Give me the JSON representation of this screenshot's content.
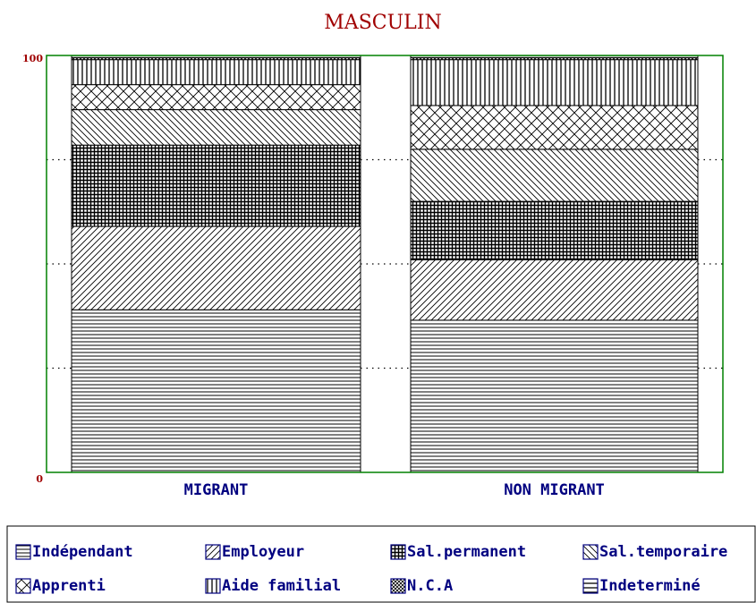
{
  "chart_data": {
    "type": "stacked_bar",
    "title": "MASCULIN",
    "categories": [
      "MIGRANT",
      "NON MIGRANT"
    ],
    "series": [
      {
        "name": "Indépendant",
        "pattern": "hline",
        "values": [
          39,
          36.5
        ]
      },
      {
        "name": "Employeur",
        "pattern": "diag",
        "values": [
          20,
          14.5
        ]
      },
      {
        "name": "Sal.permanent",
        "pattern": "grid",
        "values": [
          19.5,
          14
        ]
      },
      {
        "name": "Sal.temporaire",
        "pattern": "anti",
        "values": [
          8.5,
          12.5
        ]
      },
      {
        "name": "Apprenti",
        "pattern": "cross",
        "values": [
          6,
          10.5
        ]
      },
      {
        "name": "Aide familial",
        "pattern": "vline",
        "values": [
          6,
          11
        ]
      },
      {
        "name": "N.C.A",
        "pattern": "xdense",
        "values": [
          0.5,
          0.5
        ]
      },
      {
        "name": "Indeterminé",
        "pattern": "hline2",
        "values": [
          0.5,
          0.5
        ]
      }
    ],
    "ylim": [
      0,
      100
    ],
    "yticks": [
      0,
      100
    ],
    "gridlines": [
      25,
      50,
      75
    ]
  }
}
